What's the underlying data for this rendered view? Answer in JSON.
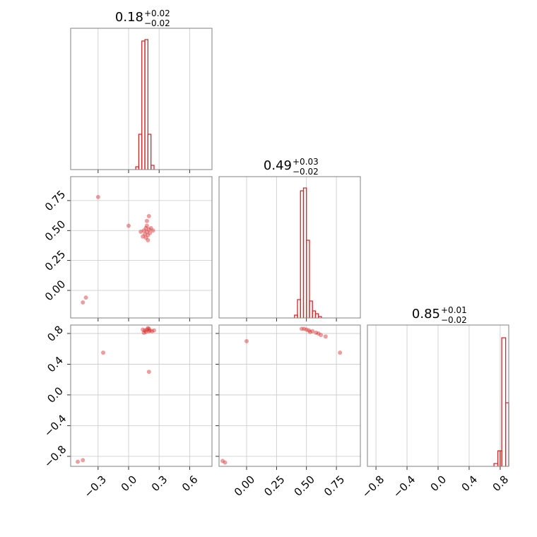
{
  "chart_data": [
    {
      "type": "histogram",
      "title": "0.18",
      "title_upper": "+0.02",
      "title_lower": "−0.02",
      "bins": [
        0.07,
        0.1,
        0.13,
        0.16,
        0.19,
        0.22,
        0.25
      ],
      "counts": [
        0.02,
        0.25,
        0.91,
        0.92,
        0.25,
        0.03
      ],
      "color": "#d62728",
      "xlim": [
        -0.57,
        0.82
      ],
      "ylim": [
        0,
        1
      ],
      "xticks": [
        {
          "value": -0.3,
          "label": "−0.3"
        },
        {
          "value": 0,
          "label": "0.0"
        },
        0.3,
        0.6
      ],
      "grid": true,
      "show_xlabels": false,
      "show_ylabels": false
    },
    {
      "type": "scatter",
      "color": "#d62728",
      "x": [
        0.18,
        0.16,
        0.2,
        0.17,
        0.19,
        0.15,
        0.21,
        0.18,
        0.14,
        0.22,
        0.18,
        0.17,
        0.2,
        0.12,
        0.24,
        0.19,
        -0.45,
        -0.42,
        0.0,
        -0.3
      ],
      "y": [
        0.49,
        0.47,
        0.51,
        0.52,
        0.46,
        0.5,
        0.48,
        0.54,
        0.45,
        0.52,
        0.58,
        0.44,
        0.62,
        0.49,
        0.5,
        0.42,
        -0.1,
        -0.06,
        0.54,
        0.78
      ],
      "xlim": [
        -0.57,
        0.82
      ],
      "ylim": [
        -0.23,
        0.95
      ],
      "xticks": [
        {
          "value": -0.3,
          "label": "−0.3"
        },
        {
          "value": 0,
          "label": "0.0"
        },
        0.3,
        0.6
      ],
      "yticks": [
        {
          "value": 0,
          "label": "0.00"
        },
        0.25,
        {
          "value": 0.5,
          "label": "0.50"
        },
        0.75
      ],
      "grid": true,
      "show_xlabels": false,
      "show_ylabels": true
    },
    {
      "type": "histogram",
      "title": "0.49",
      "title_upper": "+0.03",
      "title_lower": "−0.02",
      "bins": [
        0.4,
        0.425,
        0.45,
        0.475,
        0.5,
        0.525,
        0.55,
        0.575,
        0.6,
        0.625
      ],
      "counts": [
        0.02,
        0.13,
        0.9,
        0.92,
        0.55,
        0.12,
        0.05,
        0.03,
        0.01
      ],
      "color": "#d62728",
      "xlim": [
        -0.23,
        0.95
      ],
      "ylim": [
        0,
        1
      ],
      "xticks": [
        {
          "value": 0,
          "label": "0.00"
        },
        0.25,
        {
          "value": 0.5,
          "label": "0.50"
        },
        0.75
      ],
      "grid": true,
      "show_xlabels": false,
      "show_ylabels": false
    },
    {
      "type": "scatter",
      "color": "#d62728",
      "x": [
        0.18,
        0.16,
        0.2,
        0.17,
        0.21,
        0.14,
        0.23,
        0.19,
        0.15,
        0.25,
        0.2,
        -0.5,
        -0.45,
        0.2,
        -0.25
      ],
      "y": [
        0.85,
        0.84,
        0.86,
        0.82,
        0.84,
        0.85,
        0.83,
        0.87,
        0.81,
        0.84,
        0.3,
        -0.87,
        -0.85,
        0.83,
        0.55
      ],
      "xlim": [
        -0.57,
        0.82
      ],
      "ylim": [
        -0.93,
        0.91
      ],
      "xticks": [
        {
          "value": -0.3,
          "label": "−0.3"
        },
        {
          "value": 0,
          "label": "0.0"
        },
        0.3,
        0.6
      ],
      "yticks": [
        {
          "value": -0.8,
          "label": "−0.8"
        },
        {
          "value": -0.4,
          "label": "−0.4"
        },
        {
          "value": 0,
          "label": "0.0"
        },
        0.4,
        0.8
      ],
      "grid": true,
      "show_xlabels": true,
      "show_ylabels": true
    },
    {
      "type": "scatter",
      "color": "#d62728",
      "x": [
        0.5,
        0.48,
        0.52,
        0.55,
        0.58,
        0.62,
        0.66,
        0.46,
        0.53,
        0.6,
        0.78,
        -0.2,
        -0.18,
        0.0
      ],
      "y": [
        0.85,
        0.86,
        0.84,
        0.83,
        0.81,
        0.78,
        0.76,
        0.86,
        0.82,
        0.8,
        0.55,
        -0.86,
        -0.88,
        0.7
      ],
      "xlim": [
        -0.23,
        0.95
      ],
      "ylim": [
        -0.93,
        0.91
      ],
      "xticks": [
        {
          "value": 0,
          "label": "0.00"
        },
        0.25,
        {
          "value": 0.5,
          "label": "0.50"
        },
        0.75
      ],
      "yticks": [
        {
          "value": -0.8,
          "label": "−0.8"
        },
        {
          "value": -0.4,
          "label": "−0.4"
        },
        {
          "value": 0,
          "label": "0.0"
        },
        0.4,
        0.8
      ],
      "grid": true,
      "show_xlabels": true,
      "show_ylabels": false
    },
    {
      "type": "histogram",
      "title": "0.85",
      "title_upper": "+0.01",
      "title_lower": "−0.02",
      "bins": [
        0.72,
        0.77,
        0.8,
        0.82,
        0.87,
        0.91
      ],
      "counts": [
        0.02,
        0.11,
        0.11,
        0.91,
        0.45
      ],
      "color": "#d62728",
      "xlim": [
        -0.91,
        0.91
      ],
      "ylim": [
        0,
        1
      ],
      "xticks": [
        {
          "value": -0.8,
          "label": "−0.8"
        },
        {
          "value": -0.4,
          "label": "−0.4"
        },
        {
          "value": 0,
          "label": "0.0"
        },
        0.4,
        0.8
      ],
      "grid": true,
      "show_xlabels": true,
      "show_ylabels": false
    }
  ]
}
